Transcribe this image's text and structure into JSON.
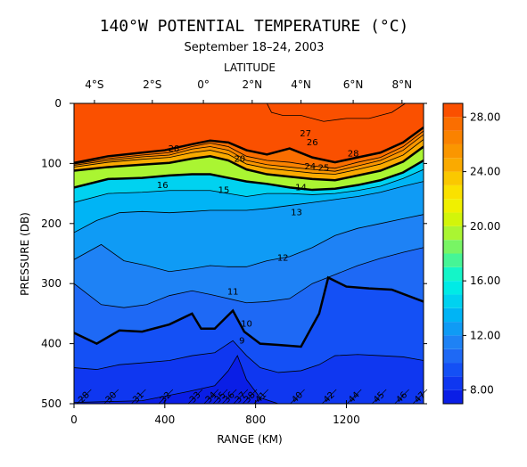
{
  "chart_data": {
    "type": "heatmap",
    "title": "140°W POTENTIAL TEMPERATURE (°C)",
    "subtitle": "September 18–24, 2003",
    "top_axis_label": "LATITUDE",
    "top_ticks": [
      "4°S",
      "2°S",
      "0°",
      "2°N",
      "4°N",
      "6°N",
      "8°N"
    ],
    "top_tick_ranges_km": [
      90,
      345,
      570,
      785,
      1000,
      1230,
      1445
    ],
    "xlabel": "RANGE (KM)",
    "xlim": [
      0,
      1540
    ],
    "x_ticks": [
      0,
      400,
      800,
      1200
    ],
    "x_tick_labels": [
      "0",
      "400",
      "800",
      "1200"
    ],
    "ylabel": "PRESSURE (DB)",
    "ylim": [
      0,
      500
    ],
    "y_ticks": [
      0,
      100,
      200,
      300,
      400,
      500
    ],
    "y_tick_labels": [
      "0",
      "100",
      "200",
      "300",
      "400",
      "500"
    ],
    "y_inverted": true,
    "colorbar": {
      "range": [
        7,
        29
      ],
      "tick_values": [
        8,
        12,
        16,
        20,
        24,
        28
      ],
      "tick_labels": [
        "8.00",
        "12.00",
        "16.00",
        "20.00",
        "24.00",
        "28.00"
      ],
      "bands": [
        {
          "lo": 7,
          "color": "#0a1ee6"
        },
        {
          "lo": 8,
          "color": "#0f37f0"
        },
        {
          "lo": 9,
          "color": "#1450f5"
        },
        {
          "lo": 10,
          "color": "#1e69f5"
        },
        {
          "lo": 11,
          "color": "#1e82f5"
        },
        {
          "lo": 12,
          "color": "#0f9bf5"
        },
        {
          "lo": 13,
          "color": "#00b4f5"
        },
        {
          "lo": 14,
          "color": "#00d2f0"
        },
        {
          "lo": 15,
          "color": "#00ebe6"
        },
        {
          "lo": 16,
          "color": "#14f5c8"
        },
        {
          "lo": 17,
          "color": "#46f596"
        },
        {
          "lo": 18,
          "color": "#78f564"
        },
        {
          "lo": 19,
          "color": "#aaf532"
        },
        {
          "lo": 20,
          "color": "#d2f50a"
        },
        {
          "lo": 21,
          "color": "#f0f000"
        },
        {
          "lo": 22,
          "color": "#fae100"
        },
        {
          "lo": 23,
          "color": "#fac800"
        },
        {
          "lo": 24,
          "color": "#faaa00"
        },
        {
          "lo": 25,
          "color": "#fa9600"
        },
        {
          "lo": 26,
          "color": "#fa8200"
        },
        {
          "lo": 27,
          "color": "#fa6e00"
        },
        {
          "lo": 28,
          "color": "#fa5000"
        }
      ]
    },
    "isotherms": [
      {
        "value": 29,
        "points": [
          [
            850,
            0
          ],
          [
            870,
            15
          ],
          [
            920,
            20
          ],
          [
            1000,
            20
          ],
          [
            1100,
            30
          ],
          [
            1200,
            25
          ],
          [
            1300,
            25
          ],
          [
            1400,
            15
          ],
          [
            1460,
            0
          ]
        ]
      },
      {
        "value": 28,
        "points": [
          [
            0,
            99
          ],
          [
            150,
            88
          ],
          [
            300,
            82
          ],
          [
            400,
            78
          ],
          [
            520,
            68
          ],
          [
            600,
            62
          ],
          [
            680,
            65
          ],
          [
            760,
            78
          ],
          [
            850,
            85
          ],
          [
            950,
            75
          ],
          [
            1050,
            90
          ],
          [
            1150,
            98
          ],
          [
            1250,
            90
          ],
          [
            1350,
            82
          ],
          [
            1450,
            65
          ],
          [
            1540,
            40
          ]
        ]
      },
      {
        "value": 27,
        "points": [
          [
            0,
            101
          ],
          [
            150,
            92
          ],
          [
            300,
            86
          ],
          [
            420,
            82
          ],
          [
            520,
            72
          ],
          [
            600,
            66
          ],
          [
            680,
            72
          ],
          [
            760,
            88
          ],
          [
            850,
            95
          ],
          [
            950,
            98
          ],
          [
            1050,
            104
          ],
          [
            1150,
            108
          ],
          [
            1250,
            98
          ],
          [
            1350,
            90
          ],
          [
            1450,
            72
          ],
          [
            1540,
            46
          ]
        ]
      },
      {
        "value": 26,
        "points": [
          [
            0,
            103
          ],
          [
            150,
            95
          ],
          [
            300,
            89
          ],
          [
            420,
            86
          ],
          [
            520,
            76
          ],
          [
            600,
            72
          ],
          [
            680,
            78
          ],
          [
            760,
            95
          ],
          [
            850,
            102
          ],
          [
            950,
            106
          ],
          [
            1050,
            110
          ],
          [
            1150,
            113
          ],
          [
            1250,
            104
          ],
          [
            1350,
            95
          ],
          [
            1450,
            78
          ],
          [
            1540,
            52
          ]
        ]
      },
      {
        "value": 25,
        "points": [
          [
            0,
            106
          ],
          [
            150,
            98
          ],
          [
            300,
            93
          ],
          [
            420,
            90
          ],
          [
            520,
            82
          ],
          [
            600,
            78
          ],
          [
            680,
            85
          ],
          [
            760,
            101
          ],
          [
            850,
            108
          ],
          [
            950,
            112
          ],
          [
            1050,
            116
          ],
          [
            1150,
            118
          ],
          [
            1250,
            110
          ],
          [
            1350,
            101
          ],
          [
            1450,
            86
          ],
          [
            1540,
            60
          ]
        ]
      },
      {
        "value": 20,
        "points": [
          [
            0,
            112
          ],
          [
            150,
            106
          ],
          [
            300,
            102
          ],
          [
            420,
            99
          ],
          [
            520,
            92
          ],
          [
            600,
            88
          ],
          [
            680,
            95
          ],
          [
            760,
            110
          ],
          [
            850,
            118
          ],
          [
            950,
            122
          ],
          [
            1050,
            126
          ],
          [
            1150,
            128
          ],
          [
            1250,
            120
          ],
          [
            1350,
            112
          ],
          [
            1450,
            97
          ],
          [
            1540,
            72
          ]
        ]
      },
      {
        "value": 15,
        "points": [
          [
            0,
            140
          ],
          [
            150,
            126
          ],
          [
            300,
            124
          ],
          [
            420,
            120
          ],
          [
            520,
            118
          ],
          [
            600,
            118
          ],
          [
            680,
            124
          ],
          [
            760,
            130
          ],
          [
            850,
            134
          ],
          [
            950,
            140
          ],
          [
            1050,
            144
          ],
          [
            1150,
            142
          ],
          [
            1250,
            136
          ],
          [
            1350,
            128
          ],
          [
            1450,
            115
          ],
          [
            1540,
            95
          ]
        ]
      },
      {
        "value": 14,
        "points": [
          [
            0,
            165
          ],
          [
            150,
            150
          ],
          [
            300,
            148
          ],
          [
            420,
            145
          ],
          [
            520,
            145
          ],
          [
            600,
            145
          ],
          [
            680,
            150
          ],
          [
            760,
            155
          ],
          [
            850,
            150
          ],
          [
            950,
            150
          ],
          [
            1050,
            152
          ],
          [
            1150,
            150
          ],
          [
            1250,
            145
          ],
          [
            1350,
            138
          ],
          [
            1450,
            125
          ],
          [
            1540,
            110
          ]
        ]
      },
      {
        "value": 13,
        "points": [
          [
            0,
            215
          ],
          [
            100,
            195
          ],
          [
            200,
            182
          ],
          [
            300,
            180
          ],
          [
            420,
            182
          ],
          [
            520,
            180
          ],
          [
            600,
            178
          ],
          [
            680,
            178
          ],
          [
            760,
            178
          ],
          [
            850,
            175
          ],
          [
            950,
            170
          ],
          [
            1050,
            165
          ],
          [
            1150,
            160
          ],
          [
            1250,
            155
          ],
          [
            1350,
            148
          ],
          [
            1450,
            138
          ],
          [
            1540,
            130
          ]
        ]
      },
      {
        "value": 12,
        "points": [
          [
            0,
            260
          ],
          [
            120,
            235
          ],
          [
            220,
            262
          ],
          [
            320,
            270
          ],
          [
            420,
            280
          ],
          [
            520,
            275
          ],
          [
            600,
            270
          ],
          [
            680,
            272
          ],
          [
            760,
            272
          ],
          [
            850,
            262
          ],
          [
            950,
            255
          ],
          [
            1050,
            240
          ],
          [
            1150,
            220
          ],
          [
            1250,
            208
          ],
          [
            1350,
            200
          ],
          [
            1450,
            192
          ],
          [
            1540,
            185
          ]
        ]
      },
      {
        "value": 11,
        "points": [
          [
            0,
            300
          ],
          [
            120,
            335
          ],
          [
            220,
            340
          ],
          [
            320,
            335
          ],
          [
            420,
            320
          ],
          [
            520,
            312
          ],
          [
            600,
            318
          ],
          [
            680,
            325
          ],
          [
            760,
            332
          ],
          [
            850,
            330
          ],
          [
            950,
            325
          ],
          [
            1050,
            300
          ],
          [
            1150,
            285
          ],
          [
            1250,
            270
          ],
          [
            1350,
            258
          ],
          [
            1450,
            248
          ],
          [
            1540,
            240
          ]
        ]
      },
      {
        "value": 10,
        "points": [
          [
            0,
            382
          ],
          [
            100,
            400
          ],
          [
            200,
            378
          ],
          [
            300,
            380
          ],
          [
            420,
            368
          ],
          [
            520,
            350
          ],
          [
            560,
            375
          ],
          [
            620,
            375
          ],
          [
            700,
            345
          ],
          [
            750,
            380
          ],
          [
            820,
            400
          ],
          [
            900,
            402
          ],
          [
            1000,
            405
          ],
          [
            1080,
            350
          ],
          [
            1120,
            290
          ],
          [
            1200,
            305
          ],
          [
            1300,
            308
          ],
          [
            1400,
            310
          ],
          [
            1540,
            330
          ]
        ]
      },
      {
        "value": 9,
        "points": [
          [
            0,
            440
          ],
          [
            100,
            443
          ],
          [
            200,
            435
          ],
          [
            300,
            432
          ],
          [
            420,
            428
          ],
          [
            520,
            420
          ],
          [
            620,
            415
          ],
          [
            700,
            395
          ],
          [
            760,
            420
          ],
          [
            820,
            440
          ],
          [
            900,
            448
          ],
          [
            1000,
            445
          ],
          [
            1080,
            435
          ],
          [
            1150,
            420
          ],
          [
            1250,
            418
          ],
          [
            1350,
            420
          ],
          [
            1450,
            422
          ],
          [
            1540,
            428
          ]
        ]
      },
      {
        "value": 8,
        "points": [
          [
            0,
            498
          ],
          [
            300,
            495
          ],
          [
            500,
            480
          ],
          [
            620,
            470
          ],
          [
            680,
            445
          ],
          [
            720,
            420
          ],
          [
            760,
            460
          ],
          [
            820,
            490
          ],
          [
            900,
            500
          ]
        ]
      }
    ],
    "bold_isotherms": [
      28,
      20,
      15,
      10
    ],
    "contour_labels": [
      {
        "text": "28",
        "x": 440,
        "y": 80
      },
      {
        "text": "27",
        "x": 1020,
        "y": 55
      },
      {
        "text": "26",
        "x": 1050,
        "y": 70
      },
      {
        "text": "28",
        "x": 1230,
        "y": 88
      },
      {
        "text": "20",
        "x": 730,
        "y": 97
      },
      {
        "text": "24",
        "x": 1040,
        "y": 110
      },
      {
        "text": "25",
        "x": 1100,
        "y": 112
      },
      {
        "text": "16",
        "x": 390,
        "y": 141
      },
      {
        "text": "15",
        "x": 660,
        "y": 149
      },
      {
        "text": "14",
        "x": 1000,
        "y": 145
      },
      {
        "text": "13",
        "x": 980,
        "y": 186
      },
      {
        "text": "12",
        "x": 920,
        "y": 262
      },
      {
        "text": "11",
        "x": 700,
        "y": 318
      },
      {
        "text": "10",
        "x": 760,
        "y": 372
      },
      {
        "text": "9",
        "x": 740,
        "y": 400
      }
    ],
    "station_ticks": [
      {
        "label": "28",
        "x": 60
      },
      {
        "label": "30",
        "x": 180
      },
      {
        "label": "31",
        "x": 300
      },
      {
        "label": "32",
        "x": 420
      },
      {
        "label": "33",
        "x": 550
      },
      {
        "label": "34",
        "x": 620
      },
      {
        "label": "35",
        "x": 660
      },
      {
        "label": "36",
        "x": 700
      },
      {
        "label": "37",
        "x": 750
      },
      {
        "label": "38",
        "x": 790
      },
      {
        "label": "41",
        "x": 840
      },
      {
        "label": "40",
        "x": 1000
      },
      {
        "label": "42",
        "x": 1140
      },
      {
        "label": "44",
        "x": 1250
      },
      {
        "label": "45",
        "x": 1360
      },
      {
        "label": "46",
        "x": 1460
      },
      {
        "label": "47",
        "x": 1540
      }
    ]
  }
}
